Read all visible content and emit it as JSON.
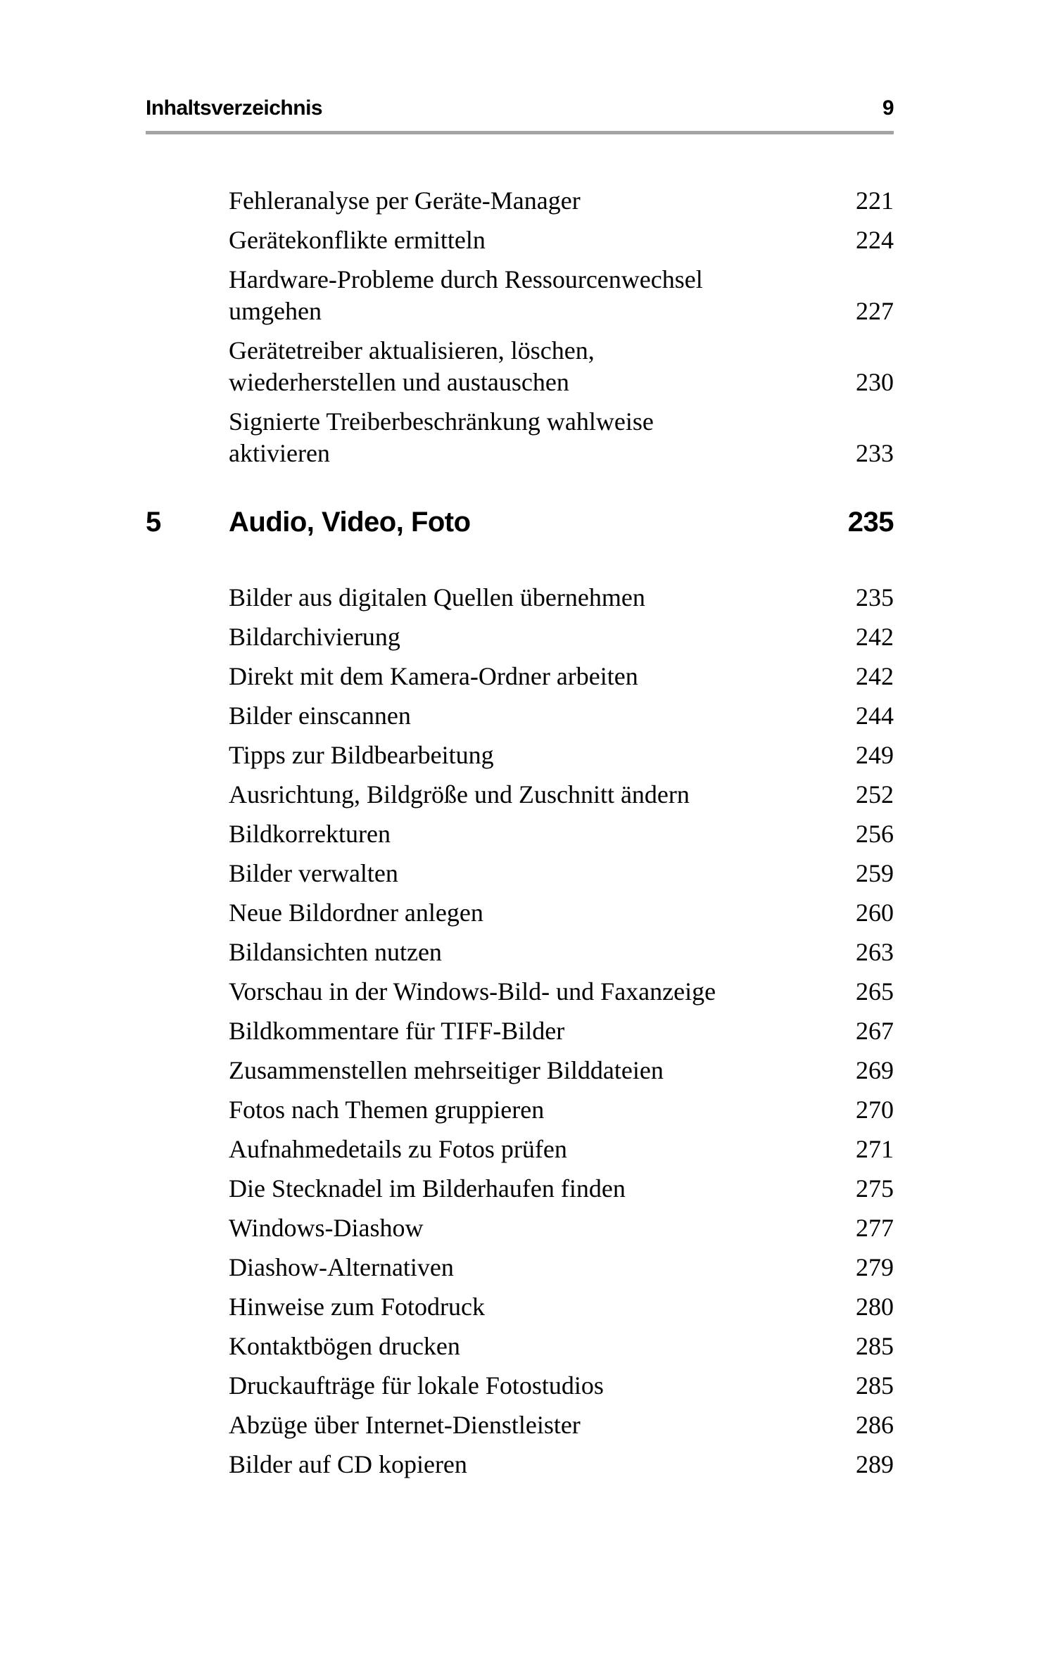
{
  "header": {
    "title": "Inhaltsverzeichnis",
    "page_number": "9"
  },
  "toc": {
    "pre_entries": [
      {
        "line1": "Fehleranalyse per Geräte-Manager",
        "line2": "",
        "page": "221"
      },
      {
        "line1": "Gerätekonflikte ermitteln",
        "line2": "",
        "page": "224"
      },
      {
        "line1": "Hardware-Probleme durch Ressourcenwechsel",
        "line2": "umgehen",
        "page": "227"
      },
      {
        "line1": "Gerätetreiber aktualisieren, löschen,",
        "line2": "wiederherstellen und austauschen",
        "page": "230"
      },
      {
        "line1": "Signierte Treiberbeschränkung wahlweise",
        "line2": "aktivieren",
        "page": "233"
      }
    ],
    "chapter": {
      "number": "5",
      "title": "Audio, Video, Foto",
      "page": "235"
    },
    "entries": [
      {
        "text": "Bilder aus digitalen Quellen übernehmen",
        "page": "235"
      },
      {
        "text": "Bildarchivierung",
        "page": "242"
      },
      {
        "text": "Direkt mit dem Kamera-Ordner arbeiten",
        "page": "242"
      },
      {
        "text": "Bilder einscannen",
        "page": "244"
      },
      {
        "text": "Tipps zur Bildbearbeitung",
        "page": "249"
      },
      {
        "text": "Ausrichtung, Bildgröße und Zuschnitt ändern",
        "page": "252"
      },
      {
        "text": "Bildkorrekturen",
        "page": "256"
      },
      {
        "text": "Bilder verwalten",
        "page": "259"
      },
      {
        "text": "Neue Bildordner anlegen",
        "page": "260"
      },
      {
        "text": "Bildansichten nutzen",
        "page": "263"
      },
      {
        "text": "Vorschau in der Windows-Bild- und Faxanzeige",
        "page": "265"
      },
      {
        "text": "Bildkommentare für TIFF-Bilder",
        "page": "267"
      },
      {
        "text": "Zusammenstellen mehrseitiger Bilddateien",
        "page": "269"
      },
      {
        "text": "Fotos nach Themen gruppieren",
        "page": "270"
      },
      {
        "text": "Aufnahmedetails zu Fotos prüfen",
        "page": "271"
      },
      {
        "text": "Die Stecknadel im Bilderhaufen finden",
        "page": "275"
      },
      {
        "text": "Windows-Diashow",
        "page": "277"
      },
      {
        "text": "Diashow-Alternativen",
        "page": "279"
      },
      {
        "text": "Hinweise zum Fotodruck",
        "page": "280"
      },
      {
        "text": "Kontaktbögen drucken",
        "page": "285"
      },
      {
        "text": "Druckaufträge für lokale Fotostudios",
        "page": "285"
      },
      {
        "text": "Abzüge über Internet-Dienstleister",
        "page": "286"
      },
      {
        "text": "Bilder auf CD kopieren",
        "page": "289"
      }
    ]
  },
  "colors": {
    "background": "#ffffff",
    "text": "#000000",
    "rule": "#a3a3a3"
  }
}
